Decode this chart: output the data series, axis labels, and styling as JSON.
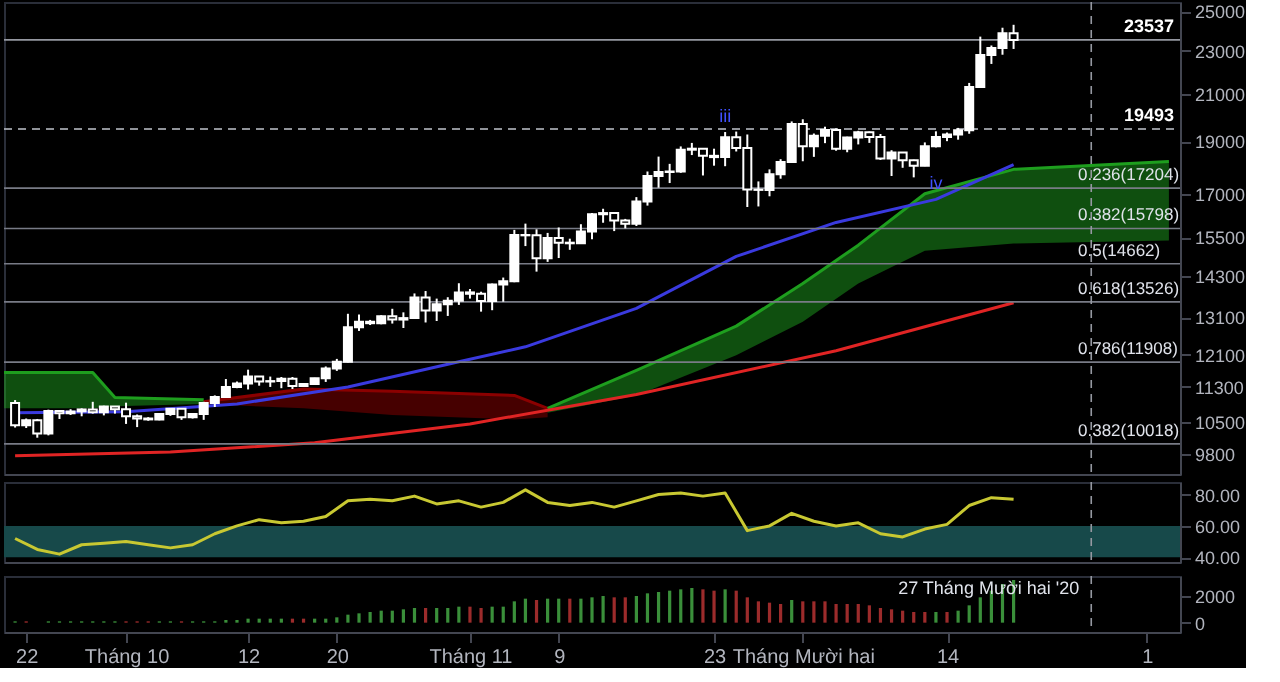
{
  "chart_data": [
    {
      "type": "candlestick",
      "color": "#ffffff",
      "log": true,
      "ylim": [
        9400,
        25500
      ],
      "yticks": [
        9800,
        10500,
        11300,
        12100,
        13100,
        14300,
        15500,
        17000,
        19000,
        21000,
        23000,
        25000
      ],
      "xlim": [
        "2020-09-20",
        "2021-01-04"
      ],
      "tick_labels": "y",
      "x": [
        "2020-09-21",
        "2020-09-22",
        "2020-09-23",
        "2020-09-24",
        "2020-09-25",
        "2020-09-26",
        "2020-09-27",
        "2020-09-28",
        "2020-09-29",
        "2020-09-30",
        "2020-10-01",
        "2020-10-02",
        "2020-10-03",
        "2020-10-04",
        "2020-10-05",
        "2020-10-06",
        "2020-10-07",
        "2020-10-08",
        "2020-10-09",
        "2020-10-10",
        "2020-10-11",
        "2020-10-12",
        "2020-10-13",
        "2020-10-14",
        "2020-10-15",
        "2020-10-16",
        "2020-10-17",
        "2020-10-18",
        "2020-10-19",
        "2020-10-20",
        "2020-10-21",
        "2020-10-22",
        "2020-10-23",
        "2020-10-24",
        "2020-10-25",
        "2020-10-26",
        "2020-10-27",
        "2020-10-28",
        "2020-10-29",
        "2020-10-30",
        "2020-10-31",
        "2020-11-01",
        "2020-11-02",
        "2020-11-03",
        "2020-11-04",
        "2020-11-05",
        "2020-11-06",
        "2020-11-07",
        "2020-11-08",
        "2020-11-09",
        "2020-11-10",
        "2020-11-11",
        "2020-11-12",
        "2020-11-13",
        "2020-11-14",
        "2020-11-15",
        "2020-11-16",
        "2020-11-17",
        "2020-11-18",
        "2020-11-19",
        "2020-11-20",
        "2020-11-21",
        "2020-11-22",
        "2020-11-23",
        "2020-11-24",
        "2020-11-25",
        "2020-11-26",
        "2020-11-27",
        "2020-11-28",
        "2020-11-29",
        "2020-11-30",
        "2020-12-01",
        "2020-12-02",
        "2020-12-03",
        "2020-12-04",
        "2020-12-05",
        "2020-12-06",
        "2020-12-07",
        "2020-12-08",
        "2020-12-09",
        "2020-12-10",
        "2020-12-11",
        "2020-12-12",
        "2020-12-13",
        "2020-12-14",
        "2020-12-15",
        "2020-12-16",
        "2020-12-17",
        "2020-12-18",
        "2020-12-19",
        "2020-12-20"
      ],
      "ohlc": [
        [
          10920,
          10990,
          10370,
          10420
        ],
        [
          10420,
          10570,
          10360,
          10530
        ],
        [
          10530,
          10560,
          10150,
          10240
        ],
        [
          10240,
          10770,
          10200,
          10740
        ],
        [
          10740,
          10760,
          10560,
          10690
        ],
        [
          10690,
          10780,
          10650,
          10730
        ],
        [
          10730,
          10800,
          10620,
          10775
        ],
        [
          10775,
          10950,
          10680,
          10710
        ],
        [
          10710,
          10860,
          10640,
          10840
        ],
        [
          10840,
          10850,
          10680,
          10780
        ],
        [
          10780,
          10930,
          10450,
          10620
        ],
        [
          10620,
          10660,
          10380,
          10570
        ],
        [
          10570,
          10600,
          10520,
          10550
        ],
        [
          10550,
          10690,
          10530,
          10670
        ],
        [
          10670,
          10800,
          10630,
          10790
        ],
        [
          10790,
          10800,
          10540,
          10600
        ],
        [
          10600,
          10690,
          10570,
          10670
        ],
        [
          10670,
          10950,
          10540,
          10920
        ],
        [
          10920,
          11100,
          10830,
          11060
        ],
        [
          11060,
          11490,
          11060,
          11300
        ],
        [
          11300,
          11430,
          11270,
          11380
        ],
        [
          11380,
          11720,
          11240,
          11550
        ],
        [
          11550,
          11560,
          11330,
          11430
        ],
        [
          11430,
          11550,
          11300,
          11440
        ],
        [
          11440,
          11540,
          11270,
          11500
        ],
        [
          11500,
          11540,
          11250,
          11320
        ],
        [
          11320,
          11390,
          11300,
          11370
        ],
        [
          11370,
          11520,
          11350,
          11510
        ],
        [
          11510,
          11800,
          11420,
          11750
        ],
        [
          11750,
          11990,
          11690,
          11920
        ],
        [
          11920,
          13190,
          11900,
          12820
        ],
        [
          12820,
          13170,
          12720,
          12970
        ],
        [
          12970,
          13020,
          12880,
          12930
        ],
        [
          12930,
          13150,
          12900,
          13120
        ],
        [
          13120,
          13330,
          12920,
          13030
        ],
        [
          13030,
          13230,
          12800,
          13070
        ],
        [
          13070,
          13770,
          13050,
          13650
        ],
        [
          13650,
          13840,
          12950,
          13280
        ],
        [
          13280,
          13620,
          12990,
          13460
        ],
        [
          13460,
          13660,
          13130,
          13560
        ],
        [
          13560,
          14070,
          13440,
          13800
        ],
        [
          13800,
          13900,
          13620,
          13760
        ],
        [
          13760,
          13820,
          13250,
          13550
        ],
        [
          13550,
          14060,
          13290,
          14030
        ],
        [
          14030,
          14240,
          13530,
          14130
        ],
        [
          14130,
          15750,
          14100,
          15580
        ],
        [
          15580,
          15960,
          15220,
          15570
        ],
        [
          15570,
          15770,
          14420,
          14830
        ],
        [
          14830,
          15650,
          14720,
          15480
        ],
        [
          15480,
          15830,
          14840,
          15330
        ],
        [
          15330,
          15460,
          15100,
          15310
        ],
        [
          15310,
          15940,
          15290,
          15700
        ],
        [
          15700,
          16320,
          15440,
          16280
        ],
        [
          16280,
          16470,
          15990,
          16320
        ],
        [
          16320,
          16320,
          15710,
          16070
        ],
        [
          16070,
          16120,
          15800,
          15960
        ],
        [
          15960,
          16880,
          15880,
          16720
        ],
        [
          16720,
          17820,
          16580,
          17650
        ],
        [
          17650,
          18390,
          17220,
          17800
        ],
        [
          17800,
          18110,
          17390,
          17820
        ],
        [
          17820,
          18790,
          17770,
          18660
        ],
        [
          18660,
          18930,
          18450,
          18700
        ],
        [
          18700,
          18700,
          17670,
          18420
        ],
        [
          18420,
          18700,
          18040,
          18370
        ],
        [
          18370,
          19370,
          18020,
          19160
        ],
        [
          19160,
          19390,
          18590,
          18730
        ],
        [
          18730,
          19270,
          16530,
          17150
        ],
        [
          17150,
          17450,
          16550,
          17140
        ],
        [
          17140,
          17900,
          16910,
          17720
        ],
        [
          17720,
          18290,
          17550,
          18180
        ],
        [
          18180,
          19810,
          18180,
          19700
        ],
        [
          19700,
          19900,
          18210,
          18800
        ],
        [
          18800,
          19310,
          18380,
          19220
        ],
        [
          19220,
          19590,
          18920,
          19450
        ],
        [
          19450,
          19520,
          18620,
          18700
        ],
        [
          18700,
          19180,
          18560,
          19150
        ],
        [
          19150,
          19420,
          18870,
          19360
        ],
        [
          19360,
          19390,
          18930,
          19170
        ],
        [
          19170,
          19290,
          18260,
          18320
        ],
        [
          18320,
          18640,
          17650,
          18550
        ],
        [
          18550,
          18570,
          17960,
          18250
        ],
        [
          18250,
          18270,
          17600,
          18040
        ],
        [
          18040,
          18950,
          18020,
          18800
        ],
        [
          18800,
          19400,
          18750,
          19170
        ],
        [
          19170,
          19350,
          19000,
          19270
        ],
        [
          19270,
          19540,
          19060,
          19440
        ],
        [
          19440,
          21490,
          19300,
          21310
        ],
        [
          21310,
          23700,
          21260,
          22800
        ],
        [
          22800,
          23260,
          22370,
          23140
        ],
        [
          23140,
          24150,
          22810,
          23870
        ],
        [
          23870,
          24300,
          23090,
          23537
        ]
      ],
      "series": [
        {
          "type": "line",
          "color": "#1e9e1e",
          "x": [
            "2020-09-20",
            "2020-09-28",
            "2020-09-30",
            "2020-10-08"
          ],
          "values": [
            11650,
            11650,
            11050,
            11000
          ],
          "upper": [
            11650,
            11650,
            11050,
            11000
          ],
          "lower": [
            10800,
            10800,
            10850,
            10900
          ]
        },
        {
          "type": "line",
          "color": "#8b0000",
          "x": [
            "2020-10-08",
            "2020-10-17",
            "2020-10-25",
            "2020-11-05",
            "2020-11-08"
          ],
          "values": [
            10950,
            11250,
            11200,
            11100,
            10800
          ],
          "upper": [
            10950,
            11250,
            11200,
            11100,
            10800
          ],
          "lower": [
            10900,
            10800,
            10650,
            10550,
            10600
          ]
        },
        {
          "type": "line",
          "color": "#1e9e1e",
          "x": [
            "2020-11-08",
            "2020-11-16",
            "2020-11-25",
            "2020-12-01",
            "2020-12-06",
            "2020-12-12",
            "2020-12-20",
            "2021-01-03"
          ],
          "values": [
            10800,
            11700,
            12850,
            14060,
            15250,
            17000,
            17900,
            18200
          ],
          "upper": [
            10800,
            11700,
            12850,
            14060,
            15250,
            17000,
            17900,
            18200
          ],
          "lower": [
            10700,
            11100,
            12080,
            12970,
            14060,
            15070,
            15300,
            15400
          ]
        },
        {
          "type": "line",
          "color": "#3a3adf",
          "x": [
            "2020-09-21",
            "2020-10-01",
            "2020-10-11",
            "2020-10-21",
            "2020-10-31",
            "2020-11-06",
            "2020-11-16",
            "2020-11-25",
            "2020-12-04",
            "2020-12-13",
            "2020-12-20"
          ],
          "values": [
            10700,
            10720,
            10900,
            11300,
            11920,
            12300,
            13340,
            14890,
            16000,
            16800,
            18080
          ]
        },
        {
          "type": "line",
          "color": "#e02424",
          "x": [
            "2020-09-21",
            "2020-10-05",
            "2020-10-18",
            "2020-11-01",
            "2020-11-16",
            "2020-12-04",
            "2020-12-20"
          ],
          "values": [
            9770,
            9850,
            10040,
            10450,
            11120,
            12200,
            13500
          ]
        }
      ],
      "ref_lines": [
        {
          "axis": "y",
          "value": 17204,
          "label": "0.236(17204)"
        },
        {
          "axis": "y",
          "value": 15798,
          "label": "0.382(15798)"
        },
        {
          "axis": "y",
          "value": 14662,
          "label": "0.5(14662)"
        },
        {
          "axis": "y",
          "value": 13526,
          "label": "0.618(13526)"
        },
        {
          "axis": "y",
          "value": 11908,
          "label": "0.786(11908)"
        },
        {
          "axis": "y",
          "value": 10018,
          "label": "0.382(10018)"
        },
        {
          "axis": "y",
          "value": 23537,
          "label": "23537",
          "color": "#9598a1",
          "line_style": "solid"
        },
        {
          "axis": "y",
          "value": 19493,
          "label": "19493",
          "color": "#c0c3cc",
          "line_style": "dashed"
        },
        {
          "axis": "x",
          "value": "2020-12-27",
          "label": null,
          "color": "#9598a1",
          "line_style": "dashed"
        }
      ],
      "annotations": [
        {
          "text": "iii",
          "x": "2020-11-24",
          "y": 19370
        },
        {
          "text": "iv",
          "x": "2020-12-13",
          "y": 16800
        }
      ]
    },
    {
      "type": "line",
      "ylim": [
        37,
        88
      ],
      "yticks": [
        {
          "value": 40,
          "label": "40.00"
        },
        {
          "value": 60,
          "label": "60.00"
        },
        {
          "value": 80,
          "label": "80.00"
        }
      ],
      "xlim": [
        "2020-09-20",
        "2021-01-04"
      ],
      "tick_labels": "y",
      "bands": [
        {
          "axis": "y",
          "from": 40,
          "to": 60,
          "color": "#17494a"
        }
      ],
      "ref_lines": [
        {
          "axis": "x",
          "value": "2020-12-27",
          "label": null,
          "color": "#9598a1",
          "line_style": "dashed"
        }
      ],
      "series": [
        {
          "color": "#c8c832",
          "x": [
            "2020-09-21",
            "2020-09-23",
            "2020-09-25",
            "2020-09-27",
            "2020-09-29",
            "2020-10-01",
            "2020-10-03",
            "2020-10-05",
            "2020-10-07",
            "2020-10-09",
            "2020-10-11",
            "2020-10-13",
            "2020-10-15",
            "2020-10-17",
            "2020-10-19",
            "2020-10-21",
            "2020-10-23",
            "2020-10-25",
            "2020-10-27",
            "2020-10-29",
            "2020-10-31",
            "2020-11-02",
            "2020-11-04",
            "2020-11-06",
            "2020-11-08",
            "2020-11-10",
            "2020-11-12",
            "2020-11-14",
            "2020-11-16",
            "2020-11-18",
            "2020-11-20",
            "2020-11-22",
            "2020-11-24",
            "2020-11-26",
            "2020-11-28",
            "2020-11-30",
            "2020-12-02",
            "2020-12-04",
            "2020-12-06",
            "2020-12-08",
            "2020-12-10",
            "2020-12-12",
            "2020-12-14",
            "2020-12-16",
            "2020-12-18",
            "2020-12-20"
          ],
          "values": [
            52,
            45,
            42,
            48,
            49,
            50,
            48,
            46,
            48,
            55,
            60,
            64,
            62,
            63,
            66,
            76,
            77,
            76,
            79,
            74,
            76,
            72,
            75,
            83,
            75,
            73,
            75,
            72,
            76,
            80,
            81,
            79,
            81,
            57,
            60,
            68,
            63,
            60,
            62,
            55,
            53,
            58,
            61,
            73,
            78,
            77
          ]
        }
      ]
    },
    {
      "type": "bar",
      "ylim": [
        -700,
        3500
      ],
      "yticks": [
        0,
        2000
      ],
      "xlim": [
        "2020-09-20",
        "2021-01-04"
      ],
      "xticks": [
        {
          "value": "2020-09-22",
          "label": "22"
        },
        {
          "value": "2020-10-01",
          "label": "Tháng 10"
        },
        {
          "value": "2020-10-12",
          "label": "12"
        },
        {
          "value": "2020-10-20",
          "label": "20"
        },
        {
          "value": "2020-11-01",
          "label": "Tháng 11"
        },
        {
          "value": "2020-11-09",
          "label": "9"
        },
        {
          "value": "2020-11-23",
          "label": "23"
        },
        {
          "value": "2020-12-01",
          "label": "Tháng Mười hai"
        },
        {
          "value": "2020-12-14",
          "label": "14"
        },
        {
          "value": "2021-01-01",
          "label": "1"
        }
      ],
      "ref_lines": [
        {
          "axis": "x",
          "value": "2020-12-27",
          "label": "27 Tháng Mười hai '20",
          "color": "#9598a1",
          "line_style": "dashed"
        }
      ],
      "x": [
        "2020-09-21",
        "2020-09-22",
        "2020-09-23",
        "2020-09-24",
        "2020-09-25",
        "2020-09-26",
        "2020-09-27",
        "2020-09-28",
        "2020-09-29",
        "2020-09-30",
        "2020-10-01",
        "2020-10-02",
        "2020-10-03",
        "2020-10-04",
        "2020-10-05",
        "2020-10-06",
        "2020-10-07",
        "2020-10-08",
        "2020-10-09",
        "2020-10-10",
        "2020-10-11",
        "2020-10-12",
        "2020-10-13",
        "2020-10-14",
        "2020-10-15",
        "2020-10-16",
        "2020-10-17",
        "2020-10-18",
        "2020-10-19",
        "2020-10-20",
        "2020-10-21",
        "2020-10-22",
        "2020-10-23",
        "2020-10-24",
        "2020-10-25",
        "2020-10-26",
        "2020-10-27",
        "2020-10-28",
        "2020-10-29",
        "2020-10-30",
        "2020-10-31",
        "2020-11-01",
        "2020-11-02",
        "2020-11-03",
        "2020-11-04",
        "2020-11-05",
        "2020-11-06",
        "2020-11-07",
        "2020-11-08",
        "2020-11-09",
        "2020-11-10",
        "2020-11-11",
        "2020-11-12",
        "2020-11-13",
        "2020-11-14",
        "2020-11-15",
        "2020-11-16",
        "2020-11-17",
        "2020-11-18",
        "2020-11-19",
        "2020-11-20",
        "2020-11-21",
        "2020-11-22",
        "2020-11-23",
        "2020-11-24",
        "2020-11-25",
        "2020-11-26",
        "2020-11-27",
        "2020-11-28",
        "2020-11-29",
        "2020-11-30",
        "2020-12-01",
        "2020-12-02",
        "2020-12-03",
        "2020-12-04",
        "2020-12-05",
        "2020-12-06",
        "2020-12-07",
        "2020-12-08",
        "2020-12-09",
        "2020-12-10",
        "2020-12-11",
        "2020-12-12",
        "2020-12-13",
        "2020-12-14",
        "2020-12-15",
        "2020-12-16",
        "2020-12-17",
        "2020-12-18",
        "2020-12-19",
        "2020-12-20"
      ],
      "values": [
        100,
        100,
        0,
        100,
        100,
        100,
        100,
        100,
        100,
        100,
        100,
        100,
        100,
        100,
        100,
        100,
        100,
        100,
        100,
        200,
        200,
        300,
        300,
        300,
        300,
        300,
        300,
        300,
        300,
        400,
        600,
        700,
        800,
        900,
        900,
        1000,
        1100,
        1100,
        1100,
        1100,
        1200,
        1200,
        1100,
        1200,
        1200,
        1600,
        1800,
        1700,
        1800,
        1800,
        1800,
        1800,
        1900,
        2000,
        1900,
        1900,
        2000,
        2200,
        2300,
        2400,
        2500,
        2600,
        2500,
        2400,
        2500,
        2400,
        1900,
        1600,
        1500,
        1400,
        1700,
        1600,
        1600,
        1600,
        1400,
        1400,
        1400,
        1300,
        1100,
        1000,
        900,
        800,
        800,
        800,
        800,
        900,
        1300,
        1900,
        2400,
        2900,
        3200
      ],
      "colors": [
        "#3a8f3a",
        "#9c2b2b",
        "#9c2b2b",
        "#3a8f3a",
        "#3a8f3a",
        "#3a8f3a",
        "#3a8f3a",
        "#3a8f3a",
        "#3a8f3a",
        "#3a8f3a",
        "#9c2b2b",
        "#9c2b2b",
        "#9c2b2b",
        "#3a8f3a",
        "#3a8f3a",
        "#9c2b2b",
        "#3a8f3a",
        "#3a8f3a",
        "#3a8f3a",
        "#3a8f3a",
        "#3a8f3a",
        "#3a8f3a",
        "#3a8f3a",
        "#3a8f3a",
        "#3a8f3a",
        "#9c2b2b",
        "#9c2b2b",
        "#3a8f3a",
        "#3a8f3a",
        "#3a8f3a",
        "#3a8f3a",
        "#3a8f3a",
        "#3a8f3a",
        "#3a8f3a",
        "#3a8f3a",
        "#3a8f3a",
        "#3a8f3a",
        "#9c2b2b",
        "#3a8f3a",
        "#3a8f3a",
        "#3a8f3a",
        "#9c2b2b",
        "#9c2b2b",
        "#3a8f3a",
        "#3a8f3a",
        "#3a8f3a",
        "#3a8f3a",
        "#9c2b2b",
        "#3a8f3a",
        "#3a8f3a",
        "#9c2b2b",
        "#3a8f3a",
        "#3a8f3a",
        "#3a8f3a",
        "#9c2b2b",
        "#9c2b2b",
        "#3a8f3a",
        "#3a8f3a",
        "#3a8f3a",
        "#3a8f3a",
        "#3a8f3a",
        "#3a8f3a",
        "#9c2b2b",
        "#9c2b2b",
        "#3a8f3a",
        "#9c2b2b",
        "#9c2b2b",
        "#9c2b2b",
        "#9c2b2b",
        "#9c2b2b",
        "#3a8f3a",
        "#9c2b2b",
        "#9c2b2b",
        "#9c2b2b",
        "#9c2b2b",
        "#9c2b2b",
        "#9c2b2b",
        "#9c2b2b",
        "#9c2b2b",
        "#9c2b2b",
        "#9c2b2b",
        "#9c2b2b",
        "#9c2b2b",
        "#3a8f3a",
        "#9c2b2b",
        "#3a8f3a",
        "#3a8f3a",
        "#3a8f3a",
        "#3a8f3a",
        "#3a8f3a",
        "#3a8f3a"
      ]
    }
  ]
}
